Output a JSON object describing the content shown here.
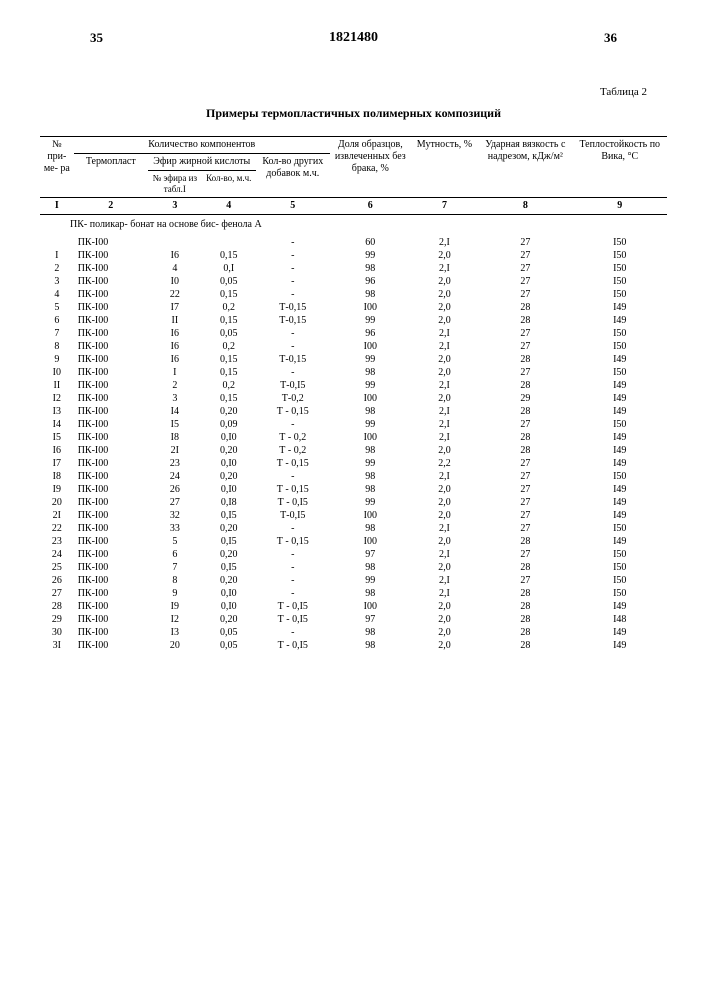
{
  "page_left": "35",
  "doc_number": "1821480",
  "page_right": "36",
  "table_label": "Таблица 2",
  "table_title": "Примеры термопластичных полимерных композиций",
  "headers": {
    "col1": "№\nпри-\nме-\nра",
    "group_comp": "Количество компонентов",
    "col2": "Термопласт",
    "group_efir": "Эфир жирной\nкислоты",
    "col3": "№ эфира\nиз табл.I",
    "col4": "Кол-во,\nм.ч.",
    "col5": "Кол-во\nдругих\nдобавок\nм.ч.",
    "col6": "Доля образцов,\nизвлеченных\nбез брака,\n%",
    "col7": "Мутность,\n%",
    "col8": "Ударная вязкость\nс надрезом,\nкДж/м²",
    "col9": "Теплостойкость\nпо Вика,\n°C"
  },
  "colnums": [
    "I",
    "2",
    "3",
    "4",
    "5",
    "6",
    "7",
    "8",
    "9"
  ],
  "desc": "ПК- поликар-\nбонат на\nоснове бис-\nфенола А",
  "rows": [
    [
      "",
      "ПК-I00",
      "",
      "",
      "-",
      "60",
      "2,I",
      "27",
      "I50"
    ],
    [
      "I",
      "ПК-I00",
      "I6",
      "0,15",
      "-",
      "99",
      "2,0",
      "27",
      "I50"
    ],
    [
      "2",
      "ПК-I00",
      "4",
      "0,I",
      "-",
      "98",
      "2,I",
      "27",
      "I50"
    ],
    [
      "3",
      "ПК-I00",
      "I0",
      "0,05",
      "-",
      "96",
      "2,0",
      "27",
      "I50"
    ],
    [
      "4",
      "ПК-I00",
      "22",
      "0,15",
      "-",
      "98",
      "2,0",
      "27",
      "I50"
    ],
    [
      "5",
      "ПК-I00",
      "I7",
      "0,2",
      "Т-0,15",
      "I00",
      "2,0",
      "28",
      "I49"
    ],
    [
      "6",
      "ПК-I00",
      "II",
      "0,15",
      "Т-0,15",
      "99",
      "2,0",
      "28",
      "I49"
    ],
    [
      "7",
      "ПК-I00",
      "I6",
      "0,05",
      "-",
      "96",
      "2,I",
      "27",
      "I50"
    ],
    [
      "8",
      "ПК-I00",
      "I6",
      "0,2",
      "-",
      "I00",
      "2,I",
      "27",
      "I50"
    ],
    [
      "9",
      "ПК-I00",
      "I6",
      "0,15",
      "Т-0,15",
      "99",
      "2,0",
      "28",
      "I49"
    ],
    [
      "I0",
      "ПК-I00",
      "I",
      "0,15",
      "-",
      "98",
      "2,0",
      "27",
      "I50"
    ],
    [
      "II",
      "ПК-I00",
      "2",
      "0,2",
      "Т-0,I5",
      "99",
      "2,I",
      "28",
      "I49"
    ],
    [
      "I2",
      "ПК-I00",
      "3",
      "0,15",
      "Т-0,2",
      "I00",
      "2,0",
      "29",
      "I49"
    ],
    [
      "I3",
      "ПК-I00",
      "I4",
      "0,20",
      "Т - 0,15",
      "98",
      "2,I",
      "28",
      "I49"
    ],
    [
      "I4",
      "ПК-I00",
      "I5",
      "0,09",
      "-",
      "99",
      "2,I",
      "27",
      "I50"
    ],
    [
      "I5",
      "ПК-I00",
      "I8",
      "0,I0",
      "Т - 0,2",
      "I00",
      "2,I",
      "28",
      "I49"
    ],
    [
      "I6",
      "ПК-I00",
      "2I",
      "0,20",
      "Т - 0,2",
      "98",
      "2,0",
      "28",
      "I49"
    ],
    [
      "I7",
      "ПК-I00",
      "23",
      "0,I0",
      "Т - 0,15",
      "99",
      "2,2",
      "27",
      "I49"
    ],
    [
      "I8",
      "ПК-I00",
      "24",
      "0,20",
      "-",
      "98",
      "2,I",
      "27",
      "I50"
    ],
    [
      "I9",
      "ПК-I00",
      "26",
      "0,I0",
      "Т - 0,15",
      "98",
      "2,0",
      "27",
      "I49"
    ],
    [
      "20",
      "ПК-I00",
      "27",
      "0,I8",
      "Т - 0,I5",
      "99",
      "2,0",
      "27",
      "I49"
    ],
    [
      "2I",
      "ПК-I00",
      "32",
      "0,I5",
      "Т-0,I5",
      "I00",
      "2,0",
      "27",
      "I49"
    ],
    [
      "22",
      "ПК-I00",
      "33",
      "0,20",
      "-",
      "98",
      "2,I",
      "27",
      "I50"
    ],
    [
      "23",
      "ПК-I00",
      "5",
      "0,I5",
      "Т - 0,15",
      "I00",
      "2,0",
      "28",
      "I49"
    ],
    [
      "24",
      "ПК-I00",
      "6",
      "0,20",
      "-",
      "97",
      "2,I",
      "27",
      "I50"
    ],
    [
      "25",
      "ПК-I00",
      "7",
      "0,I5",
      "-",
      "98",
      "2,0",
      "28",
      "I50"
    ],
    [
      "26",
      "ПК-I00",
      "8",
      "0,20",
      "-",
      "99",
      "2,I",
      "27",
      "I50"
    ],
    [
      "27",
      "ПК-I00",
      "9",
      "0,I0",
      "-",
      "98",
      "2,I",
      "28",
      "I50"
    ],
    [
      "28",
      "ПК-I00",
      "I9",
      "0,I0",
      "Т - 0,I5",
      "I00",
      "2,0",
      "28",
      "I49"
    ],
    [
      "29",
      "ПК-I00",
      "I2",
      "0,20",
      "Т - 0,I5",
      "97",
      "2,0",
      "28",
      "I48"
    ],
    [
      "30",
      "ПК-I00",
      "I3",
      "0,05",
      "-",
      "98",
      "2,0",
      "28",
      "I49"
    ],
    [
      "3I",
      "ПК-I00",
      "20",
      "0,05",
      "Т - 0,I5",
      "98",
      "2,0",
      "28",
      "I49"
    ]
  ],
  "col_widths": [
    "5%",
    "11%",
    "8%",
    "8%",
    "11%",
    "12%",
    "10%",
    "14%",
    "14%"
  ]
}
